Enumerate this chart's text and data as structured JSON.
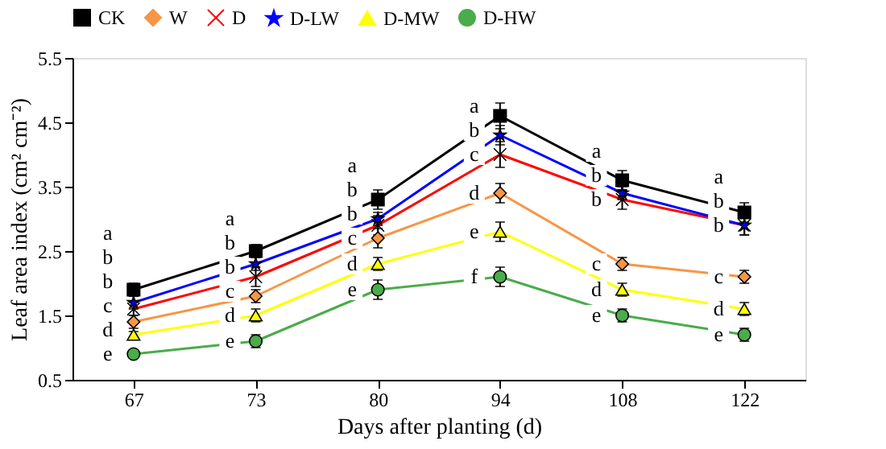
{
  "chart_data": {
    "type": "line",
    "xlabel": "Days after planting (d)",
    "ylabel": "Leaf area index (cm² cm⁻²)",
    "categories": [
      "67",
      "73",
      "80",
      "94",
      "108",
      "122"
    ],
    "ylim": [
      0.5,
      5.5
    ],
    "yticks": [
      0.5,
      1.5,
      2.5,
      3.5,
      4.5,
      5.5
    ],
    "grid": false,
    "legend": "top",
    "series": [
      {
        "name": "CK",
        "color": "#000000",
        "marker": "square",
        "values": [
          1.9,
          2.5,
          3.3,
          4.6,
          3.6,
          3.1
        ],
        "errors": [
          0.1,
          0.1,
          0.15,
          0.2,
          0.15,
          0.15
        ]
      },
      {
        "name": "W",
        "color": "#f79646",
        "marker": "diamond",
        "values": [
          1.4,
          1.8,
          2.7,
          3.4,
          2.3,
          2.1
        ],
        "errors": [
          0.1,
          0.1,
          0.15,
          0.15,
          0.1,
          0.1
        ]
      },
      {
        "name": "D",
        "color": "#ff0000",
        "marker": "cross",
        "values": [
          1.6,
          2.1,
          2.9,
          4.0,
          3.3,
          2.9
        ],
        "errors": [
          0.1,
          0.15,
          0.15,
          0.2,
          0.15,
          0.15
        ]
      },
      {
        "name": "D-LW",
        "color": "#0000ff",
        "marker": "star",
        "values": [
          1.7,
          2.3,
          3.0,
          4.3,
          3.4,
          2.9
        ],
        "errors": [
          0.1,
          0.1,
          0.1,
          0.15,
          0.1,
          0.15
        ]
      },
      {
        "name": "D-MW",
        "color": "#ffff00",
        "marker": "triangle",
        "values": [
          1.2,
          1.5,
          2.3,
          2.8,
          1.9,
          1.6
        ],
        "errors": [
          0.05,
          0.1,
          0.1,
          0.15,
          0.1,
          0.1
        ]
      },
      {
        "name": "D-HW",
        "color": "#4aac4a",
        "marker": "circle",
        "values": [
          0.9,
          1.1,
          1.9,
          2.1,
          1.5,
          1.2
        ],
        "errors": [
          0.05,
          0.1,
          0.15,
          0.15,
          0.1,
          0.1
        ]
      }
    ],
    "annotations": [
      "a",
      "b",
      "b",
      "c",
      "d",
      "e",
      "a",
      "b",
      "b",
      "c",
      "d",
      "e",
      "a",
      "b",
      "b",
      "c",
      "d",
      "e",
      "a",
      "b",
      "c",
      "d",
      "e",
      "f",
      "a",
      "b",
      "b",
      "c",
      "d",
      "e",
      "a",
      "b",
      "b",
      "c",
      "d",
      "e"
    ]
  }
}
